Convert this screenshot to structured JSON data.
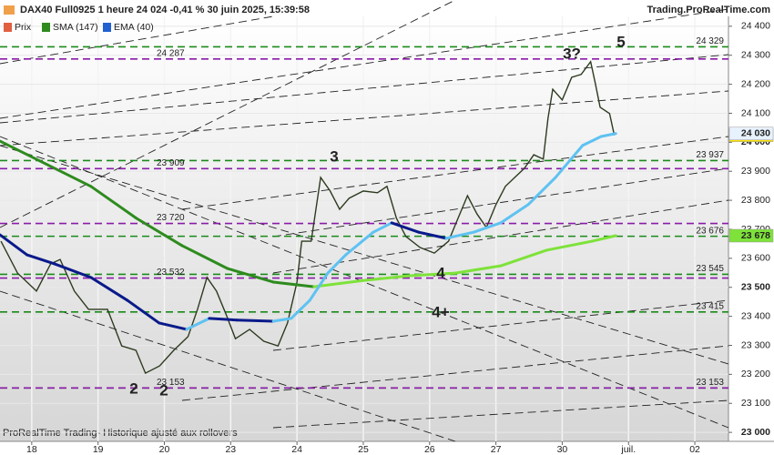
{
  "chart_data": {
    "type": "line",
    "title": "DAX40 Full0925 1 heure 24 024 -0,41 % 30 juin 2025, 15:39:58",
    "source": "Trading.ProRealTime.com",
    "footer": "ProRealTime Trading- Historique ajusté aux rollovers",
    "xlim": [
      -6.7,
      147.1
    ],
    "ylim": [
      22969,
      24434
    ],
    "xticks": [
      {
        "value": 0,
        "label": "18"
      },
      {
        "value": 14,
        "label": "19"
      },
      {
        "value": 28,
        "label": "20"
      },
      {
        "value": 42,
        "label": "23"
      },
      {
        "value": 56,
        "label": "24"
      },
      {
        "value": 70,
        "label": "25"
      },
      {
        "value": 84,
        "label": "26"
      },
      {
        "value": 98,
        "label": "27"
      },
      {
        "value": 112,
        "label": "30"
      },
      {
        "value": 126,
        "label": "juil."
      },
      {
        "value": 140,
        "label": "02"
      }
    ],
    "yticks": [
      {
        "value": 23000,
        "label": "23 000"
      },
      {
        "value": 23100,
        "label": "23 100"
      },
      {
        "value": 23200,
        "label": "23 200"
      },
      {
        "value": 23300,
        "label": "23 300"
      },
      {
        "value": 23400,
        "label": "23 400"
      },
      {
        "value": 23500,
        "label": "23 500"
      },
      {
        "value": 23600,
        "label": "23 600"
      },
      {
        "value": 23700,
        "label": "23 700"
      },
      {
        "value": 23800,
        "label": "23 800"
      },
      {
        "value": 23900,
        "label": "23 900"
      },
      {
        "value": 24000,
        "label": "24 000"
      },
      {
        "value": 24100,
        "label": "24 100"
      },
      {
        "value": 24200,
        "label": "24 200"
      },
      {
        "value": 24300,
        "label": "24 300"
      },
      {
        "value": 24400,
        "label": "24 400"
      }
    ],
    "grid": true,
    "series": [
      {
        "name": "Prix",
        "color": "#2d3a1f",
        "last_label": "24 024",
        "tag_color": "#ffe600",
        "x": [
          -6.5,
          -3,
          1,
          4,
          6,
          9,
          12,
          16,
          19,
          22,
          24,
          27,
          30,
          33,
          35,
          37,
          39,
          41,
          43,
          46,
          49,
          52,
          54,
          56,
          57,
          59,
          61,
          63,
          65,
          67,
          70,
          73,
          75,
          77,
          79,
          82,
          85,
          88,
          90,
          92,
          94,
          96,
          98,
          100,
          102,
          104,
          106,
          108,
          109,
          110,
          112,
          114,
          116,
          118,
          119,
          120,
          122,
          123
        ],
        "values": [
          23659,
          23549,
          23487,
          23581,
          23596,
          23487,
          23424,
          23424,
          23298,
          23283,
          23204,
          23229,
          23283,
          23330,
          23424,
          23534,
          23487,
          23408,
          23323,
          23355,
          23314,
          23298,
          23377,
          23518,
          23659,
          23659,
          23879,
          23832,
          23769,
          23807,
          23832,
          23826,
          23848,
          23738,
          23675,
          23637,
          23618,
          23659,
          23738,
          23816,
          23753,
          23706,
          23785,
          23848,
          23879,
          23910,
          23957,
          23942,
          24083,
          24183,
          24146,
          24224,
          24234,
          24278,
          24202,
          24121,
          24099,
          24024
        ]
      },
      {
        "name": "SMA (147)",
        "color": "#2e8b1e",
        "color_up": "#7ee23a",
        "last_label": "23 678",
        "tag_color": "#7ee23a",
        "x": [
          -6.7,
          2.9,
          12.5,
          22.1,
          31.7,
          41.3,
          51,
          59.6,
          70.2,
          79.8,
          89.4,
          99,
          108.7,
          118.3,
          123.3
        ],
        "values": [
          24004,
          23926,
          23848,
          23738,
          23644,
          23565,
          23518,
          23502,
          23524,
          23540,
          23549,
          23574,
          23628,
          23659,
          23678
        ]
      },
      {
        "name": "EMA (40)",
        "color": "#0a1a8a",
        "color_up": "#5ec2f2",
        "last_label": "24 030",
        "tag_color": "#e8f2ff",
        "x": [
          -6.7,
          -1,
          4.8,
          12.5,
          20.2,
          26.9,
          32.7,
          37.5,
          43.3,
          51,
          54.8,
          58.7,
          62.5,
          66.3,
          72.1,
          76,
          81.7,
          87.5,
          93.3,
          99,
          104.8,
          110.6,
          116.3,
          120.2,
          123.3
        ],
        "values": [
          23681,
          23612,
          23581,
          23534,
          23455,
          23377,
          23355,
          23393,
          23387,
          23383,
          23393,
          23455,
          23549,
          23612,
          23690,
          23722,
          23690,
          23669,
          23690,
          23722,
          23785,
          23879,
          23989,
          24020,
          24030
        ]
      }
    ],
    "levels": [
      {
        "value": 24329,
        "label": "24 329",
        "color": "#1a8a1a",
        "side": "right"
      },
      {
        "value": 23937,
        "label": "23 937",
        "color": "#1a8a1a",
        "side": "right"
      },
      {
        "value": 23676,
        "label": "23 676",
        "color": "#1a8a1a",
        "side": "right"
      },
      {
        "value": 23545,
        "label": "23 545",
        "color": "#1a8a1a",
        "side": "right"
      },
      {
        "value": 23415,
        "label": "23 415",
        "color": "#1a8a1a",
        "side": "right"
      },
      {
        "value": 23153,
        "label": "23 153",
        "color": "#1a8a1a",
        "side": "right"
      },
      {
        "value": 24287,
        "label": "24 287",
        "color": "#8a1aa8",
        "side": "left"
      },
      {
        "value": 23909,
        "label": "23 909",
        "color": "#8a1aa8",
        "side": "left"
      },
      {
        "value": 23720,
        "label": "23 720",
        "color": "#8a1aa8",
        "side": "left"
      },
      {
        "value": 23532,
        "label": "23 532",
        "color": "#8a1aa8",
        "side": "left"
      },
      {
        "value": 23153,
        "label": "23 153",
        "color": "#8a1aa8",
        "side": "left"
      }
    ],
    "annotations": [
      {
        "text": "3?",
        "color": "#8a1aa8"
      },
      {
        "text": "5",
        "color": "#1a8a1a"
      },
      {
        "text": "3",
        "color": "#1a8a1a"
      },
      {
        "text": "4",
        "color": "#1a8a1a"
      },
      {
        "text": "4+",
        "color": "#1a8a1a"
      },
      {
        "text": "2",
        "color": "#8a1aa8"
      },
      {
        "text": "2",
        "color": "#1a8a1a"
      }
    ]
  }
}
